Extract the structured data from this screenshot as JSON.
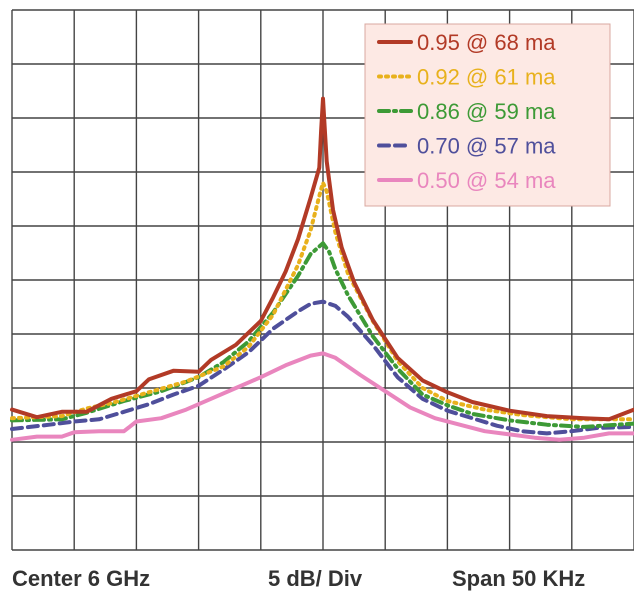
{
  "footer": {
    "center": "Center 6 GHz",
    "scale": "5 dB/ Div",
    "span": "Span 50 KHz"
  },
  "chart_data": {
    "type": "line",
    "title": "",
    "xlabel": "",
    "ylabel": "",
    "xlim": [
      -25,
      25
    ],
    "ylim": [
      0,
      50
    ],
    "x_units": "kHz offset from center",
    "y_units": "dB",
    "grid": true,
    "grid_divisions": {
      "x": 10,
      "y": 10
    },
    "legend_position": "top-right",
    "legend_background": "#fde9e4",
    "series": [
      {
        "name": "0.95 @ 68 ma",
        "color": "#b23a26",
        "dash": "solid",
        "points": [
          [
            -25,
            13.0
          ],
          [
            -23,
            12.3
          ],
          [
            -21,
            12.8
          ],
          [
            -19,
            12.8
          ],
          [
            -17,
            14.0
          ],
          [
            -15,
            14.7
          ],
          [
            -14,
            15.8
          ],
          [
            -12,
            16.6
          ],
          [
            -10,
            16.5
          ],
          [
            -9,
            17.6
          ],
          [
            -7,
            19.0
          ],
          [
            -5,
            21.2
          ],
          [
            -4,
            23.4
          ],
          [
            -3,
            25.8
          ],
          [
            -2,
            28.8
          ],
          [
            -1,
            32.6
          ],
          [
            -0.3,
            35.4
          ],
          [
            -0.15,
            38.8
          ],
          [
            0,
            41.8
          ],
          [
            0.15,
            38.8
          ],
          [
            0.3,
            36.0
          ],
          [
            0.5,
            34.2
          ],
          [
            0.8,
            31.5
          ],
          [
            1.5,
            28.0
          ],
          [
            2.5,
            24.8
          ],
          [
            4,
            21.3
          ],
          [
            6,
            17.8
          ],
          [
            8,
            15.7
          ],
          [
            10,
            14.6
          ],
          [
            12,
            13.7
          ],
          [
            15,
            12.9
          ],
          [
            18,
            12.4
          ],
          [
            21,
            12.2
          ],
          [
            23,
            12.1
          ],
          [
            25,
            13.0
          ]
        ]
      },
      {
        "name": "0.92 @ 61 ma",
        "color": "#e8b11c",
        "dash": "dot",
        "points": [
          [
            -25,
            12.2
          ],
          [
            -21,
            12.4
          ],
          [
            -19,
            13.1
          ],
          [
            -17,
            13.6
          ],
          [
            -14,
            14.6
          ],
          [
            -11,
            15.6
          ],
          [
            -8,
            17.0
          ],
          [
            -6,
            18.8
          ],
          [
            -4,
            21.8
          ],
          [
            -2,
            26.4
          ],
          [
            -1,
            29.6
          ],
          [
            -0.2,
            33.2
          ],
          [
            0,
            34.0
          ],
          [
            0.3,
            33.2
          ],
          [
            1,
            29.4
          ],
          [
            2,
            25.6
          ],
          [
            4,
            21.2
          ],
          [
            6,
            17.5
          ],
          [
            8,
            15.0
          ],
          [
            10,
            13.8
          ],
          [
            13,
            13.0
          ],
          [
            16,
            12.5
          ],
          [
            20,
            12.1
          ],
          [
            25,
            12.1
          ]
        ]
      },
      {
        "name": "0.86 @ 59 ma",
        "color": "#3d9a36",
        "dash": "dashdot",
        "points": [
          [
            -25,
            12.0
          ],
          [
            -21,
            12.1
          ],
          [
            -19,
            12.7
          ],
          [
            -16,
            13.8
          ],
          [
            -13,
            14.7
          ],
          [
            -10,
            16.0
          ],
          [
            -8,
            17.4
          ],
          [
            -6,
            19.3
          ],
          [
            -4,
            22.0
          ],
          [
            -2,
            25.4
          ],
          [
            -1,
            27.4
          ],
          [
            0,
            28.4
          ],
          [
            0.5,
            27.6
          ],
          [
            1,
            26.0
          ],
          [
            2,
            23.6
          ],
          [
            4,
            19.8
          ],
          [
            6,
            16.8
          ],
          [
            8,
            14.4
          ],
          [
            10,
            13.4
          ],
          [
            12,
            12.6
          ],
          [
            15,
            12.0
          ],
          [
            18,
            11.6
          ],
          [
            21,
            11.4
          ],
          [
            25,
            11.7
          ]
        ]
      },
      {
        "name": "0.70 @ 57 ma",
        "color": "#4f4f9b",
        "dash": "dash",
        "points": [
          [
            -25,
            11.2
          ],
          [
            -22,
            11.6
          ],
          [
            -20,
            11.9
          ],
          [
            -18,
            12.1
          ],
          [
            -16,
            12.8
          ],
          [
            -14,
            13.5
          ],
          [
            -12,
            14.4
          ],
          [
            -10,
            15.2
          ],
          [
            -8,
            16.7
          ],
          [
            -6,
            18.3
          ],
          [
            -4,
            20.5
          ],
          [
            -2,
            22.1
          ],
          [
            -1,
            22.8
          ],
          [
            0,
            23.0
          ],
          [
            1,
            22.6
          ],
          [
            2,
            21.6
          ],
          [
            4,
            19.0
          ],
          [
            6,
            16.0
          ],
          [
            8,
            14.0
          ],
          [
            10,
            12.9
          ],
          [
            12,
            12.2
          ],
          [
            14,
            11.5
          ],
          [
            16,
            11.0
          ],
          [
            18,
            10.8
          ],
          [
            20,
            11.0
          ],
          [
            22,
            11.3
          ],
          [
            25,
            11.4
          ]
        ]
      },
      {
        "name": "0.50 @ 54 ma",
        "color": "#e986be",
        "dash": "solid",
        "points": [
          [
            -25,
            10.2
          ],
          [
            -23,
            10.5
          ],
          [
            -21,
            10.5
          ],
          [
            -20,
            10.9
          ],
          [
            -18,
            11.0
          ],
          [
            -16,
            11.0
          ],
          [
            -15,
            11.9
          ],
          [
            -13,
            12.2
          ],
          [
            -11,
            13.0
          ],
          [
            -9,
            14.0
          ],
          [
            -7,
            15.0
          ],
          [
            -5,
            16.0
          ],
          [
            -3,
            17.1
          ],
          [
            -1,
            18.0
          ],
          [
            0,
            18.2
          ],
          [
            1,
            17.8
          ],
          [
            3,
            16.2
          ],
          [
            5,
            14.7
          ],
          [
            7,
            13.2
          ],
          [
            9,
            12.2
          ],
          [
            11,
            11.6
          ],
          [
            13,
            11.0
          ],
          [
            15,
            10.7
          ],
          [
            17,
            10.4
          ],
          [
            19,
            10.2
          ],
          [
            21,
            10.4
          ],
          [
            23,
            10.8
          ],
          [
            25,
            10.8
          ]
        ]
      }
    ]
  }
}
